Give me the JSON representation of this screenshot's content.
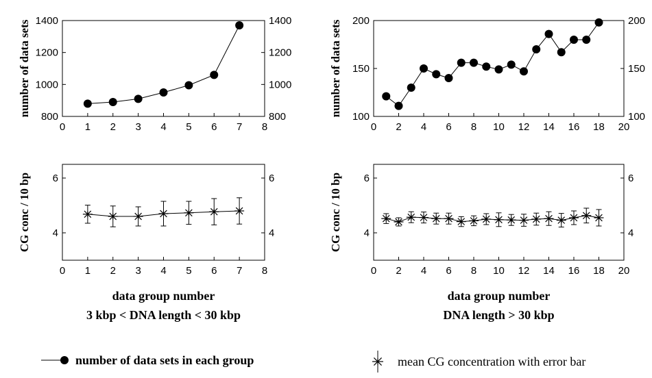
{
  "chart_data": [
    {
      "type": "line",
      "panel": "top-left",
      "title": "",
      "xlabel": "",
      "ylabel": "number of data sets",
      "xlim": [
        0,
        8
      ],
      "ylim": [
        800,
        1400
      ],
      "xticks": [
        0,
        1,
        2,
        3,
        4,
        5,
        6,
        7,
        8
      ],
      "yticks": [
        800,
        1000,
        1200,
        1400
      ],
      "right_axis_ticks": true,
      "marker": "filled-circle",
      "series": [
        {
          "x": [
            1,
            2,
            3,
            4,
            5,
            6,
            7
          ],
          "y": [
            880,
            890,
            910,
            950,
            995,
            1060,
            1370
          ]
        }
      ]
    },
    {
      "type": "line",
      "panel": "top-right",
      "title": "",
      "xlabel": "",
      "ylabel": "number of data sets",
      "xlim": [
        0,
        20
      ],
      "ylim": [
        100,
        200
      ],
      "xticks": [
        0,
        2,
        4,
        6,
        8,
        10,
        12,
        14,
        16,
        18,
        20
      ],
      "yticks": [
        100,
        150,
        200
      ],
      "right_axis_ticks": true,
      "marker": "filled-circle",
      "series": [
        {
          "x": [
            1,
            2,
            3,
            4,
            5,
            6,
            7,
            8,
            9,
            10,
            11,
            12,
            13,
            14,
            15,
            16,
            17,
            18
          ],
          "y": [
            121,
            111,
            130,
            150,
            144,
            140,
            156,
            156,
            152,
            149,
            154,
            147,
            170,
            186,
            167,
            180,
            180,
            198
          ]
        }
      ]
    },
    {
      "type": "scatter",
      "panel": "bottom-left",
      "title": "",
      "xlabel": "data group number",
      "subtitle": "3 kbp < DNA length  < 30 kbp",
      "ylabel": "CG conc / 10 bp",
      "xlim": [
        0,
        8
      ],
      "ylim": [
        3,
        6.5
      ],
      "xticks": [
        0,
        1,
        2,
        3,
        4,
        5,
        6,
        7,
        8
      ],
      "yticks": [
        4,
        6
      ],
      "right_axis_ticks": true,
      "marker": "asterisk",
      "connected": true,
      "series": [
        {
          "x": [
            1,
            2,
            3,
            4,
            5,
            6,
            7
          ],
          "y": [
            4.68,
            4.6,
            4.6,
            4.7,
            4.73,
            4.77,
            4.8
          ],
          "error": [
            0.33,
            0.38,
            0.35,
            0.45,
            0.42,
            0.48,
            0.48
          ]
        }
      ]
    },
    {
      "type": "scatter",
      "panel": "bottom-right",
      "title": "",
      "xlabel": "data group number",
      "subtitle": "DNA length > 30 kbp",
      "ylabel": "CG conc / 10 bp",
      "xlim": [
        0,
        20
      ],
      "ylim": [
        3,
        6.5
      ],
      "xticks": [
        0,
        2,
        4,
        6,
        8,
        10,
        12,
        14,
        16,
        18,
        20
      ],
      "yticks": [
        4,
        6
      ],
      "right_axis_ticks": true,
      "marker": "asterisk",
      "connected": true,
      "series": [
        {
          "x": [
            1,
            2,
            3,
            4,
            5,
            6,
            7,
            8,
            9,
            10,
            11,
            12,
            13,
            14,
            15,
            16,
            17,
            18
          ],
          "y": [
            4.52,
            4.4,
            4.57,
            4.56,
            4.52,
            4.52,
            4.41,
            4.44,
            4.5,
            4.48,
            4.47,
            4.46,
            4.5,
            4.52,
            4.46,
            4.55,
            4.63,
            4.55
          ],
          "error": [
            0.18,
            0.15,
            0.2,
            0.2,
            0.2,
            0.2,
            0.18,
            0.18,
            0.2,
            0.25,
            0.2,
            0.22,
            0.22,
            0.25,
            0.25,
            0.25,
            0.27,
            0.3
          ]
        }
      ]
    }
  ],
  "legend": {
    "items": [
      {
        "label": "number of data sets in each group",
        "marker": "filled-circle-line"
      },
      {
        "label": "mean CG concentration with error bar",
        "marker": "asterisk-errorbar"
      }
    ]
  }
}
